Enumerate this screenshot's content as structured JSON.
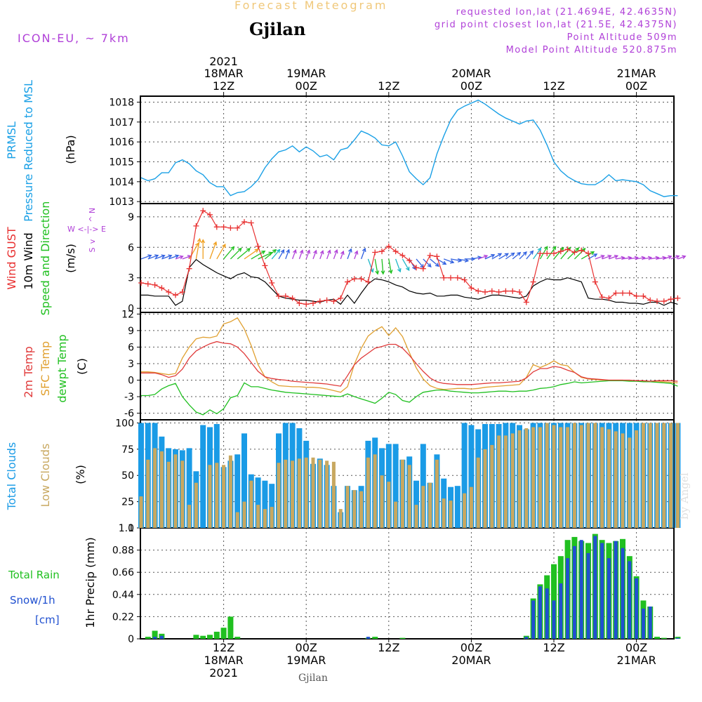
{
  "header": {
    "title": "Forecast Meteogram",
    "location": "Gjilan",
    "model": "ICON-EU, ~ 7km",
    "requested": "requested lon,lat (21.4694E, 42.4635N)",
    "grid_point": "grid point closest lon,lat (21.5E, 42.4375N)",
    "point_altitude": "Point Altitude 509m",
    "model_point_altitude": "Model Point Altitude 520.875m"
  },
  "footer": {
    "location": "Gjilan",
    "credit": "by Angel"
  },
  "time_axis": {
    "top_year_label": "2021",
    "ticks_top": [
      {
        "h": 12,
        "lines": [
          "18MAR",
          "12Z"
        ]
      },
      {
        "h": 24,
        "lines": [
          "19MAR",
          "00Z"
        ]
      },
      {
        "h": 36,
        "lines": [
          "12Z"
        ]
      },
      {
        "h": 48,
        "lines": [
          "20MAR",
          "00Z"
        ]
      },
      {
        "h": 60,
        "lines": [
          "12Z"
        ]
      },
      {
        "h": 72,
        "lines": [
          "21MAR",
          "00Z"
        ]
      }
    ],
    "ticks_bottom": [
      {
        "h": 12,
        "lines": [
          "12Z",
          "18MAR",
          "2021"
        ]
      },
      {
        "h": 24,
        "lines": [
          "00Z",
          "19MAR"
        ]
      },
      {
        "h": 36,
        "lines": [
          "12Z"
        ]
      },
      {
        "h": 48,
        "lines": [
          "00Z",
          "20MAR"
        ]
      },
      {
        "h": 60,
        "lines": [
          "12Z"
        ]
      },
      {
        "h": 72,
        "lines": [
          "00Z",
          "21MAR"
        ]
      }
    ]
  },
  "colors": {
    "pressure": "#1aa0e6",
    "gust": "#e83030",
    "wind10m": "#000000",
    "temp2m": "#e03a3a",
    "sfc": "#e0a030",
    "dewpt": "#20c020",
    "total_clouds": "#1a9be6",
    "low_clouds": "#c8a860",
    "rain": "#20c020",
    "snow": "#2050d0",
    "direction": "#20c020",
    "purple": "#b040d8",
    "grid": "#555555"
  },
  "chart_data": [
    {
      "type": "line",
      "title": "PRMSL",
      "ylabel_lines": [
        "PRMSL",
        "Pressure Reduced to MSL",
        "(hPa)"
      ],
      "ylim": [
        1012.9,
        1018.3
      ],
      "yticks": [
        1013,
        1014,
        1015,
        1016,
        1017,
        1018
      ],
      "x_start_hour": 0,
      "x_step_hours": 1,
      "series": [
        {
          "name": "PRMSL",
          "values": [
            1014.2,
            1014.05,
            1014.15,
            1014.45,
            1014.45,
            1014.95,
            1015.1,
            1014.9,
            1014.55,
            1014.35,
            1013.95,
            1013.75,
            1013.75,
            1013.3,
            1013.45,
            1013.5,
            1013.75,
            1014.1,
            1014.7,
            1015.15,
            1015.5,
            1015.6,
            1015.8,
            1015.5,
            1015.75,
            1015.55,
            1015.25,
            1015.35,
            1015.1,
            1015.6,
            1015.7,
            1016.1,
            1016.55,
            1016.4,
            1016.2,
            1015.85,
            1015.8,
            1016.0,
            1015.3,
            1014.5,
            1014.15,
            1013.85,
            1014.2,
            1015.4,
            1016.3,
            1017.1,
            1017.6,
            1017.8,
            1017.95,
            1018.1,
            1017.9,
            1017.65,
            1017.4,
            1017.2,
            1017.05,
            1016.9,
            1017.05,
            1017.1,
            1016.6,
            1015.85,
            1015.0,
            1014.55,
            1014.25,
            1014.05,
            1013.9,
            1013.85,
            1013.85,
            1014.05,
            1014.35,
            1014.05,
            1014.1,
            1014.05,
            1014.0,
            1013.85,
            1013.55,
            1013.4,
            1013.25,
            1013.3,
            1013.3
          ]
        }
      ]
    },
    {
      "type": "line",
      "title": "Wind",
      "ylabel_lines": [
        "Wind GUST",
        "10m Wind",
        "Speed and Direction",
        "(m/s)"
      ],
      "compass": [
        "N",
        "^",
        "|",
        "W <-|-> E",
        "|",
        "v",
        "S"
      ],
      "ylim": [
        -0.4,
        10.3
      ],
      "yticks": [
        0,
        3,
        6,
        9
      ],
      "x_start_hour": 0,
      "x_step_hours": 1,
      "series": [
        {
          "name": "Wind GUST",
          "values": [
            2.5,
            2.4,
            2.3,
            2.0,
            1.6,
            1.3,
            1.6,
            3.9,
            8.1,
            9.6,
            9.2,
            8.0,
            8.0,
            7.9,
            7.9,
            8.5,
            8.4,
            6.1,
            4.2,
            2.5,
            1.2,
            1.2,
            1.0,
            0.5,
            0.4,
            0.5,
            0.7,
            0.8,
            0.7,
            1.0,
            2.6,
            2.9,
            2.9,
            2.6,
            5.5,
            5.6,
            6.1,
            5.6,
            5.2,
            4.7,
            4.0,
            3.9,
            5.2,
            5.1,
            3.0,
            3.0,
            3.0,
            2.8,
            2.0,
            1.7,
            1.6,
            1.7,
            1.6,
            1.7,
            1.7,
            1.6,
            0.6,
            2.6,
            5.4,
            5.4,
            5.4,
            5.6,
            5.8,
            5.5,
            5.7,
            5.4,
            2.6,
            1.1,
            1.0,
            1.5,
            1.5,
            1.5,
            1.2,
            1.2,
            0.8,
            0.7,
            0.7,
            0.9,
            1.0
          ]
        },
        {
          "name": "10m Wind",
          "values": [
            1.3,
            1.3,
            1.2,
            1.2,
            1.2,
            0.3,
            0.7,
            4.0,
            4.8,
            4.3,
            3.9,
            3.5,
            3.2,
            2.9,
            3.3,
            3.5,
            3.1,
            3.0,
            2.6,
            1.9,
            1.2,
            1.0,
            0.9,
            0.8,
            0.8,
            0.7,
            0.6,
            0.8,
            0.9,
            0.4,
            1.3,
            0.5,
            1.5,
            2.4,
            2.9,
            2.8,
            2.6,
            2.3,
            2.1,
            1.7,
            1.5,
            1.4,
            1.5,
            1.2,
            1.2,
            1.3,
            1.3,
            1.1,
            1.0,
            0.9,
            1.1,
            1.3,
            1.3,
            1.2,
            1.1,
            1.0,
            1.2,
            2.2,
            2.6,
            2.9,
            2.8,
            2.8,
            3.0,
            2.8,
            2.6,
            1.0,
            0.9,
            0.9,
            0.8,
            0.6,
            0.6,
            0.5,
            0.5,
            0.4,
            0.6,
            0.6,
            0.3,
            0.6,
            0.4
          ]
        }
      ],
      "direction_deg": [
        250,
        250,
        250,
        250,
        250,
        250,
        250,
        210,
        190,
        180,
        200,
        210,
        220,
        225,
        230,
        235,
        240,
        245,
        230,
        220,
        210,
        200,
        200,
        200,
        200,
        200,
        200,
        200,
        200,
        200,
        200,
        200,
        200,
        340,
        350,
        355,
        350,
        340,
        330,
        330,
        320,
        315,
        310,
        300,
        290,
        280,
        280,
        270,
        260,
        250,
        245,
        240,
        240,
        235,
        230,
        225,
        220,
        215,
        210,
        215,
        220,
        220,
        225,
        225,
        240,
        240,
        250,
        250,
        250,
        260,
        260,
        260,
        260,
        260,
        260,
        260,
        250,
        250,
        250
      ]
    },
    {
      "type": "line",
      "title": "Temperature",
      "ylabel_lines": [
        "2m Temp",
        "SFC Temp",
        "dewpt Temp",
        "(C)"
      ],
      "ylim": [
        -7.2,
        12.3
      ],
      "yticks": [
        -6,
        -3,
        0,
        3,
        6,
        9,
        12
      ],
      "x_start_hour": 0,
      "x_step_hours": 1,
      "series": [
        {
          "name": "2m Temp",
          "values": [
            1.3,
            1.3,
            1.3,
            1.0,
            0.5,
            0.8,
            2.0,
            4.0,
            5.3,
            6.0,
            6.6,
            7.0,
            6.7,
            6.6,
            6.0,
            4.8,
            3.2,
            1.6,
            0.6,
            0.3,
            0.1,
            0.0,
            -0.2,
            -0.3,
            -0.4,
            -0.5,
            -0.6,
            -0.7,
            -0.9,
            -1.1,
            0.8,
            2.8,
            4.0,
            4.9,
            5.8,
            6.1,
            6.5,
            6.5,
            5.8,
            4.5,
            3.0,
            1.6,
            0.4,
            -0.3,
            -0.6,
            -0.7,
            -0.8,
            -0.8,
            -0.8,
            -0.7,
            -0.6,
            -0.5,
            -0.5,
            -0.4,
            -0.3,
            -0.2,
            0.4,
            1.5,
            2.1,
            2.1,
            2.5,
            2.3,
            1.8,
            1.4,
            0.6,
            0.3,
            0.2,
            0.1,
            0.0,
            0.0,
            0.0,
            0.0,
            -0.1,
            -0.1,
            -0.2,
            -0.1,
            -0.1,
            -0.1,
            -0.2
          ]
        },
        {
          "name": "SFC Temp",
          "values": [
            1.5,
            1.5,
            1.4,
            1.2,
            1.0,
            1.2,
            4.0,
            6.0,
            7.5,
            7.8,
            7.7,
            8.0,
            10.2,
            10.6,
            11.3,
            9.3,
            6.3,
            2.8,
            0.6,
            -0.3,
            -1.0,
            -1.1,
            -1.2,
            -1.2,
            -1.3,
            -1.3,
            -1.4,
            -1.6,
            -1.9,
            -2.2,
            -1.2,
            2.9,
            5.8,
            8.0,
            9.0,
            9.7,
            8.1,
            9.5,
            7.9,
            5.0,
            2.2,
            0.2,
            -1.0,
            -1.5,
            -1.7,
            -1.6,
            -1.5,
            -1.5,
            -1.6,
            -1.5,
            -1.3,
            -1.2,
            -1.1,
            -1.0,
            -0.9,
            -0.8,
            0.5,
            2.8,
            2.3,
            2.8,
            3.5,
            2.8,
            2.6,
            1.4,
            0.5,
            0.2,
            0.1,
            0.0,
            0.0,
            0.0,
            0.0,
            -0.1,
            -0.1,
            -0.2,
            -0.2,
            -0.3,
            -0.3,
            -0.4,
            -0.5
          ]
        },
        {
          "name": "dewpt Temp",
          "values": [
            -2.8,
            -2.8,
            -2.6,
            -1.6,
            -1.0,
            -0.6,
            -3.0,
            -4.5,
            -5.8,
            -6.3,
            -5.4,
            -6.1,
            -5.2,
            -3.2,
            -2.8,
            -0.5,
            -1.2,
            -1.2,
            -1.5,
            -1.8,
            -2.0,
            -2.2,
            -2.3,
            -2.4,
            -2.5,
            -2.6,
            -2.7,
            -2.8,
            -2.9,
            -3.0,
            -2.5,
            -3.0,
            -3.4,
            -3.8,
            -4.2,
            -3.3,
            -2.2,
            -2.6,
            -3.7,
            -4.0,
            -3.0,
            -2.2,
            -2.0,
            -1.8,
            -1.8,
            -2.0,
            -2.1,
            -2.2,
            -2.3,
            -2.3,
            -2.2,
            -2.1,
            -2.0,
            -2.0,
            -2.1,
            -2.0,
            -2.0,
            -1.8,
            -1.5,
            -1.4,
            -1.2,
            -0.8,
            -0.6,
            -0.3,
            -0.5,
            -0.4,
            -0.3,
            -0.2,
            -0.1,
            -0.1,
            -0.1,
            -0.2,
            -0.2,
            -0.3,
            -0.3,
            -0.4,
            -0.5,
            -0.6,
            -1.1
          ]
        }
      ]
    },
    {
      "type": "bar",
      "title": "Clouds",
      "ylabel_lines": [
        "Total Clouds",
        "Low Clouds",
        "(%)"
      ],
      "ylim": [
        0,
        103
      ],
      "yticks": [
        0,
        25,
        50,
        75,
        100
      ],
      "x_start_hour": 0,
      "x_step_hours": 1,
      "series": [
        {
          "name": "Total Clouds",
          "values": [
            100,
            100,
            100,
            87,
            76,
            75,
            74,
            76,
            54,
            98,
            96,
            99,
            58,
            64,
            70,
            90,
            51,
            48,
            45,
            42,
            90,
            100,
            100,
            95,
            83,
            61,
            66,
            60,
            40,
            15,
            40,
            36,
            40,
            83,
            86,
            76,
            80,
            80,
            65,
            68,
            45,
            80,
            43,
            70,
            47,
            39,
            40,
            100,
            98,
            94,
            99,
            99,
            99,
            100,
            100,
            98,
            94,
            100,
            100,
            100,
            100,
            100,
            100,
            100,
            100,
            100,
            100,
            100,
            100,
            100,
            100,
            100,
            100,
            100,
            100,
            100,
            100,
            100,
            100
          ]
        },
        {
          "name": "Low Clouds",
          "values": [
            30,
            65,
            76,
            73,
            63,
            70,
            64,
            22,
            43,
            0,
            60,
            62,
            60,
            69,
            15,
            25,
            45,
            22,
            18,
            20,
            62,
            65,
            64,
            66,
            67,
            67,
            65,
            64,
            63,
            18,
            40,
            36,
            35,
            67,
            70,
            50,
            44,
            25,
            65,
            60,
            22,
            40,
            43,
            65,
            28,
            26,
            0,
            33,
            39,
            67,
            75,
            79,
            88,
            88,
            90,
            93,
            95,
            96,
            96,
            100,
            98,
            96,
            96,
            100,
            98,
            100,
            100,
            96,
            94,
            92,
            90,
            86,
            93,
            100,
            100,
            100,
            100,
            100,
            100
          ]
        }
      ]
    },
    {
      "type": "bar",
      "title": "Precipitation",
      "ylabel_lines": [
        "1hr Precip (mm)"
      ],
      "legend": {
        "total_rain": "Total  Rain",
        "snow": "Snow/1h",
        "snow_unit": "[cm]"
      },
      "ylim": [
        0,
        1.1
      ],
      "yticks": [
        0,
        0.22,
        0.44,
        0.66,
        0.88,
        1.1
      ],
      "ytick_labels": [
        "0",
        "0.22",
        "0.44",
        "0.66",
        "0.88",
        "1.1"
      ],
      "x_start_hour": 0,
      "x_step_hours": 1,
      "series": [
        {
          "name": "Total Rain",
          "values": [
            0,
            0.02,
            0.08,
            0.05,
            0,
            0,
            0,
            0,
            0.04,
            0.03,
            0.04,
            0.07,
            0.11,
            0.22,
            0.02,
            0,
            0,
            0,
            0,
            0,
            0,
            0,
            0,
            0,
            0,
            0,
            0,
            0,
            0,
            0,
            0,
            0,
            0,
            0.01,
            0.02,
            0,
            0,
            0,
            0.01,
            0,
            0,
            0,
            0,
            0,
            0,
            0,
            0,
            0,
            0,
            0,
            0,
            0,
            0,
            0,
            0,
            0,
            0.03,
            0.4,
            0.54,
            0.63,
            0.74,
            0.82,
            0.98,
            1.01,
            0.97,
            0.95,
            1.04,
            0.98,
            0.95,
            0.97,
            0.99,
            0.82,
            0.62,
            0.38,
            0.32,
            0.02,
            0.01,
            0,
            0.02
          ]
        },
        {
          "name": "Snow/1h",
          "values": [
            0,
            0,
            0.02,
            0.03,
            0,
            0,
            0,
            0,
            0,
            0,
            0,
            0,
            0,
            0,
            0,
            0,
            0,
            0,
            0,
            0,
            0,
            0,
            0,
            0,
            0,
            0,
            0,
            0,
            0,
            0,
            0,
            0,
            0,
            0.02,
            0,
            0,
            0,
            0,
            0,
            0,
            0,
            0,
            0,
            0,
            0,
            0,
            0,
            0,
            0,
            0,
            0,
            0,
            0,
            0,
            0,
            0,
            0.02,
            0.38,
            0.52,
            0.5,
            0.38,
            0.55,
            0.8,
            0.92,
            0.98,
            0.85,
            1.02,
            0.95,
            0.8,
            0.97,
            0.9,
            0.77,
            0.6,
            0.3,
            0.32,
            0,
            0,
            0,
            0.01
          ]
        }
      ]
    }
  ]
}
